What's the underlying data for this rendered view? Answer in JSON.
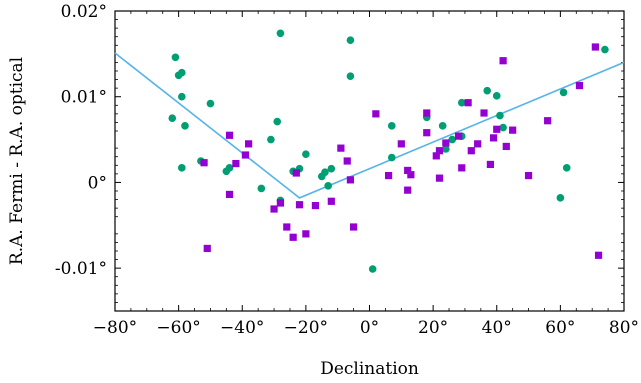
{
  "chart_data": {
    "type": "scatter",
    "title": "",
    "xlabel": "Declination",
    "ylabel": "R.A. Fermi - R.A. optical",
    "xlim": [
      -80,
      80
    ],
    "ylim": [
      -0.015,
      0.02
    ],
    "x_ticks": [
      -80,
      -60,
      -40,
      -20,
      0,
      20,
      40,
      60,
      80
    ],
    "x_tick_labels": [
      "−80°",
      "−60°",
      "−40°",
      "−20°",
      "0°",
      "20°",
      "40°",
      "60°",
      "80°"
    ],
    "y_ticks": [
      -0.01,
      0,
      0.01,
      0.02
    ],
    "y_tick_labels": [
      "-0.01°",
      "0°",
      "0.01°",
      "0.02°"
    ],
    "grid": false,
    "legend": "none",
    "series": [
      {
        "marker": "circle",
        "color": "#009e73",
        "points": [
          [
            -62,
            0.0075
          ],
          [
            -61,
            0.0146
          ],
          [
            -60,
            0.0125
          ],
          [
            -59,
            0.0128
          ],
          [
            -59,
            0.01
          ],
          [
            -58,
            0.0066
          ],
          [
            -59,
            0.0017
          ],
          [
            -50,
            0.0092
          ],
          [
            -53,
            0.0025
          ],
          [
            -45,
            0.0013
          ],
          [
            -44,
            0.0017
          ],
          [
            -34,
            -0.0007
          ],
          [
            -31,
            0.005
          ],
          [
            -29,
            0.0071
          ],
          [
            -28,
            0.0174
          ],
          [
            -28,
            -0.0021
          ],
          [
            -24,
            0.0013
          ],
          [
            -22,
            0.0016
          ],
          [
            -20,
            0.0033
          ],
          [
            -15,
            0.0007
          ],
          [
            -14,
            0.0012
          ],
          [
            -13,
            -0.0004
          ],
          [
            -12,
            0.0016
          ],
          [
            -6,
            0.0166
          ],
          [
            -6,
            0.0124
          ],
          [
            1,
            -0.0101
          ],
          [
            7,
            0.0066
          ],
          [
            7,
            0.0029
          ],
          [
            18,
            0.0076
          ],
          [
            23,
            0.0066
          ],
          [
            24,
            0.0039
          ],
          [
            26,
            0.005
          ],
          [
            29,
            0.0054
          ],
          [
            29,
            0.0093
          ],
          [
            37,
            0.0107
          ],
          [
            40,
            0.0101
          ],
          [
            41,
            0.0078
          ],
          [
            42,
            0.0064
          ],
          [
            60,
            -0.0018
          ],
          [
            61,
            0.0105
          ],
          [
            62,
            0.0017
          ],
          [
            74,
            0.0155
          ]
        ]
      },
      {
        "marker": "square",
        "color": "#9400d3",
        "points": [
          [
            -52,
            0.0023
          ],
          [
            -51,
            -0.0077
          ],
          [
            -44,
            0.0055
          ],
          [
            -44,
            -0.0014
          ],
          [
            -42,
            0.0022
          ],
          [
            -39,
            0.0032
          ],
          [
            -38,
            0.0045
          ],
          [
            -30,
            -0.0031
          ],
          [
            -28,
            -0.0024
          ],
          [
            -26,
            -0.0052
          ],
          [
            -24,
            -0.0064
          ],
          [
            -23,
            0.0011
          ],
          [
            -22,
            -0.0026
          ],
          [
            -20,
            -0.006
          ],
          [
            -17,
            -0.0027
          ],
          [
            -12,
            -0.0022
          ],
          [
            -9,
            0.004
          ],
          [
            -7,
            0.0025
          ],
          [
            -6,
            0.0003
          ],
          [
            -5,
            -0.0052
          ],
          [
            2,
            0.008
          ],
          [
            6,
            0.0008
          ],
          [
            10,
            0.0045
          ],
          [
            12,
            -0.0009
          ],
          [
            12,
            0.0014
          ],
          [
            13,
            0.0009
          ],
          [
            18,
            0.0058
          ],
          [
            18,
            0.0081
          ],
          [
            21,
            0.0031
          ],
          [
            22,
            0.0005
          ],
          [
            22,
            0.0037
          ],
          [
            24,
            0.0046
          ],
          [
            28,
            0.0054
          ],
          [
            29,
            0.0017
          ],
          [
            31,
            0.0093
          ],
          [
            32,
            0.0037
          ],
          [
            34,
            0.0045
          ],
          [
            36,
            0.0081
          ],
          [
            38,
            0.0021
          ],
          [
            39,
            0.0052
          ],
          [
            40,
            0.0062
          ],
          [
            42,
            0.0142
          ],
          [
            43,
            0.0042
          ],
          [
            45,
            0.0061
          ],
          [
            50,
            0.0008
          ],
          [
            56,
            0.0072
          ],
          [
            66,
            0.0113
          ],
          [
            71,
            0.0158
          ],
          [
            72,
            -0.0085
          ]
        ]
      }
    ],
    "fit_line": {
      "color": "#56b4e9",
      "points": [
        [
          -80,
          0.0151
        ],
        [
          -22,
          -0.0018
        ],
        [
          80,
          0.014
        ]
      ]
    }
  }
}
